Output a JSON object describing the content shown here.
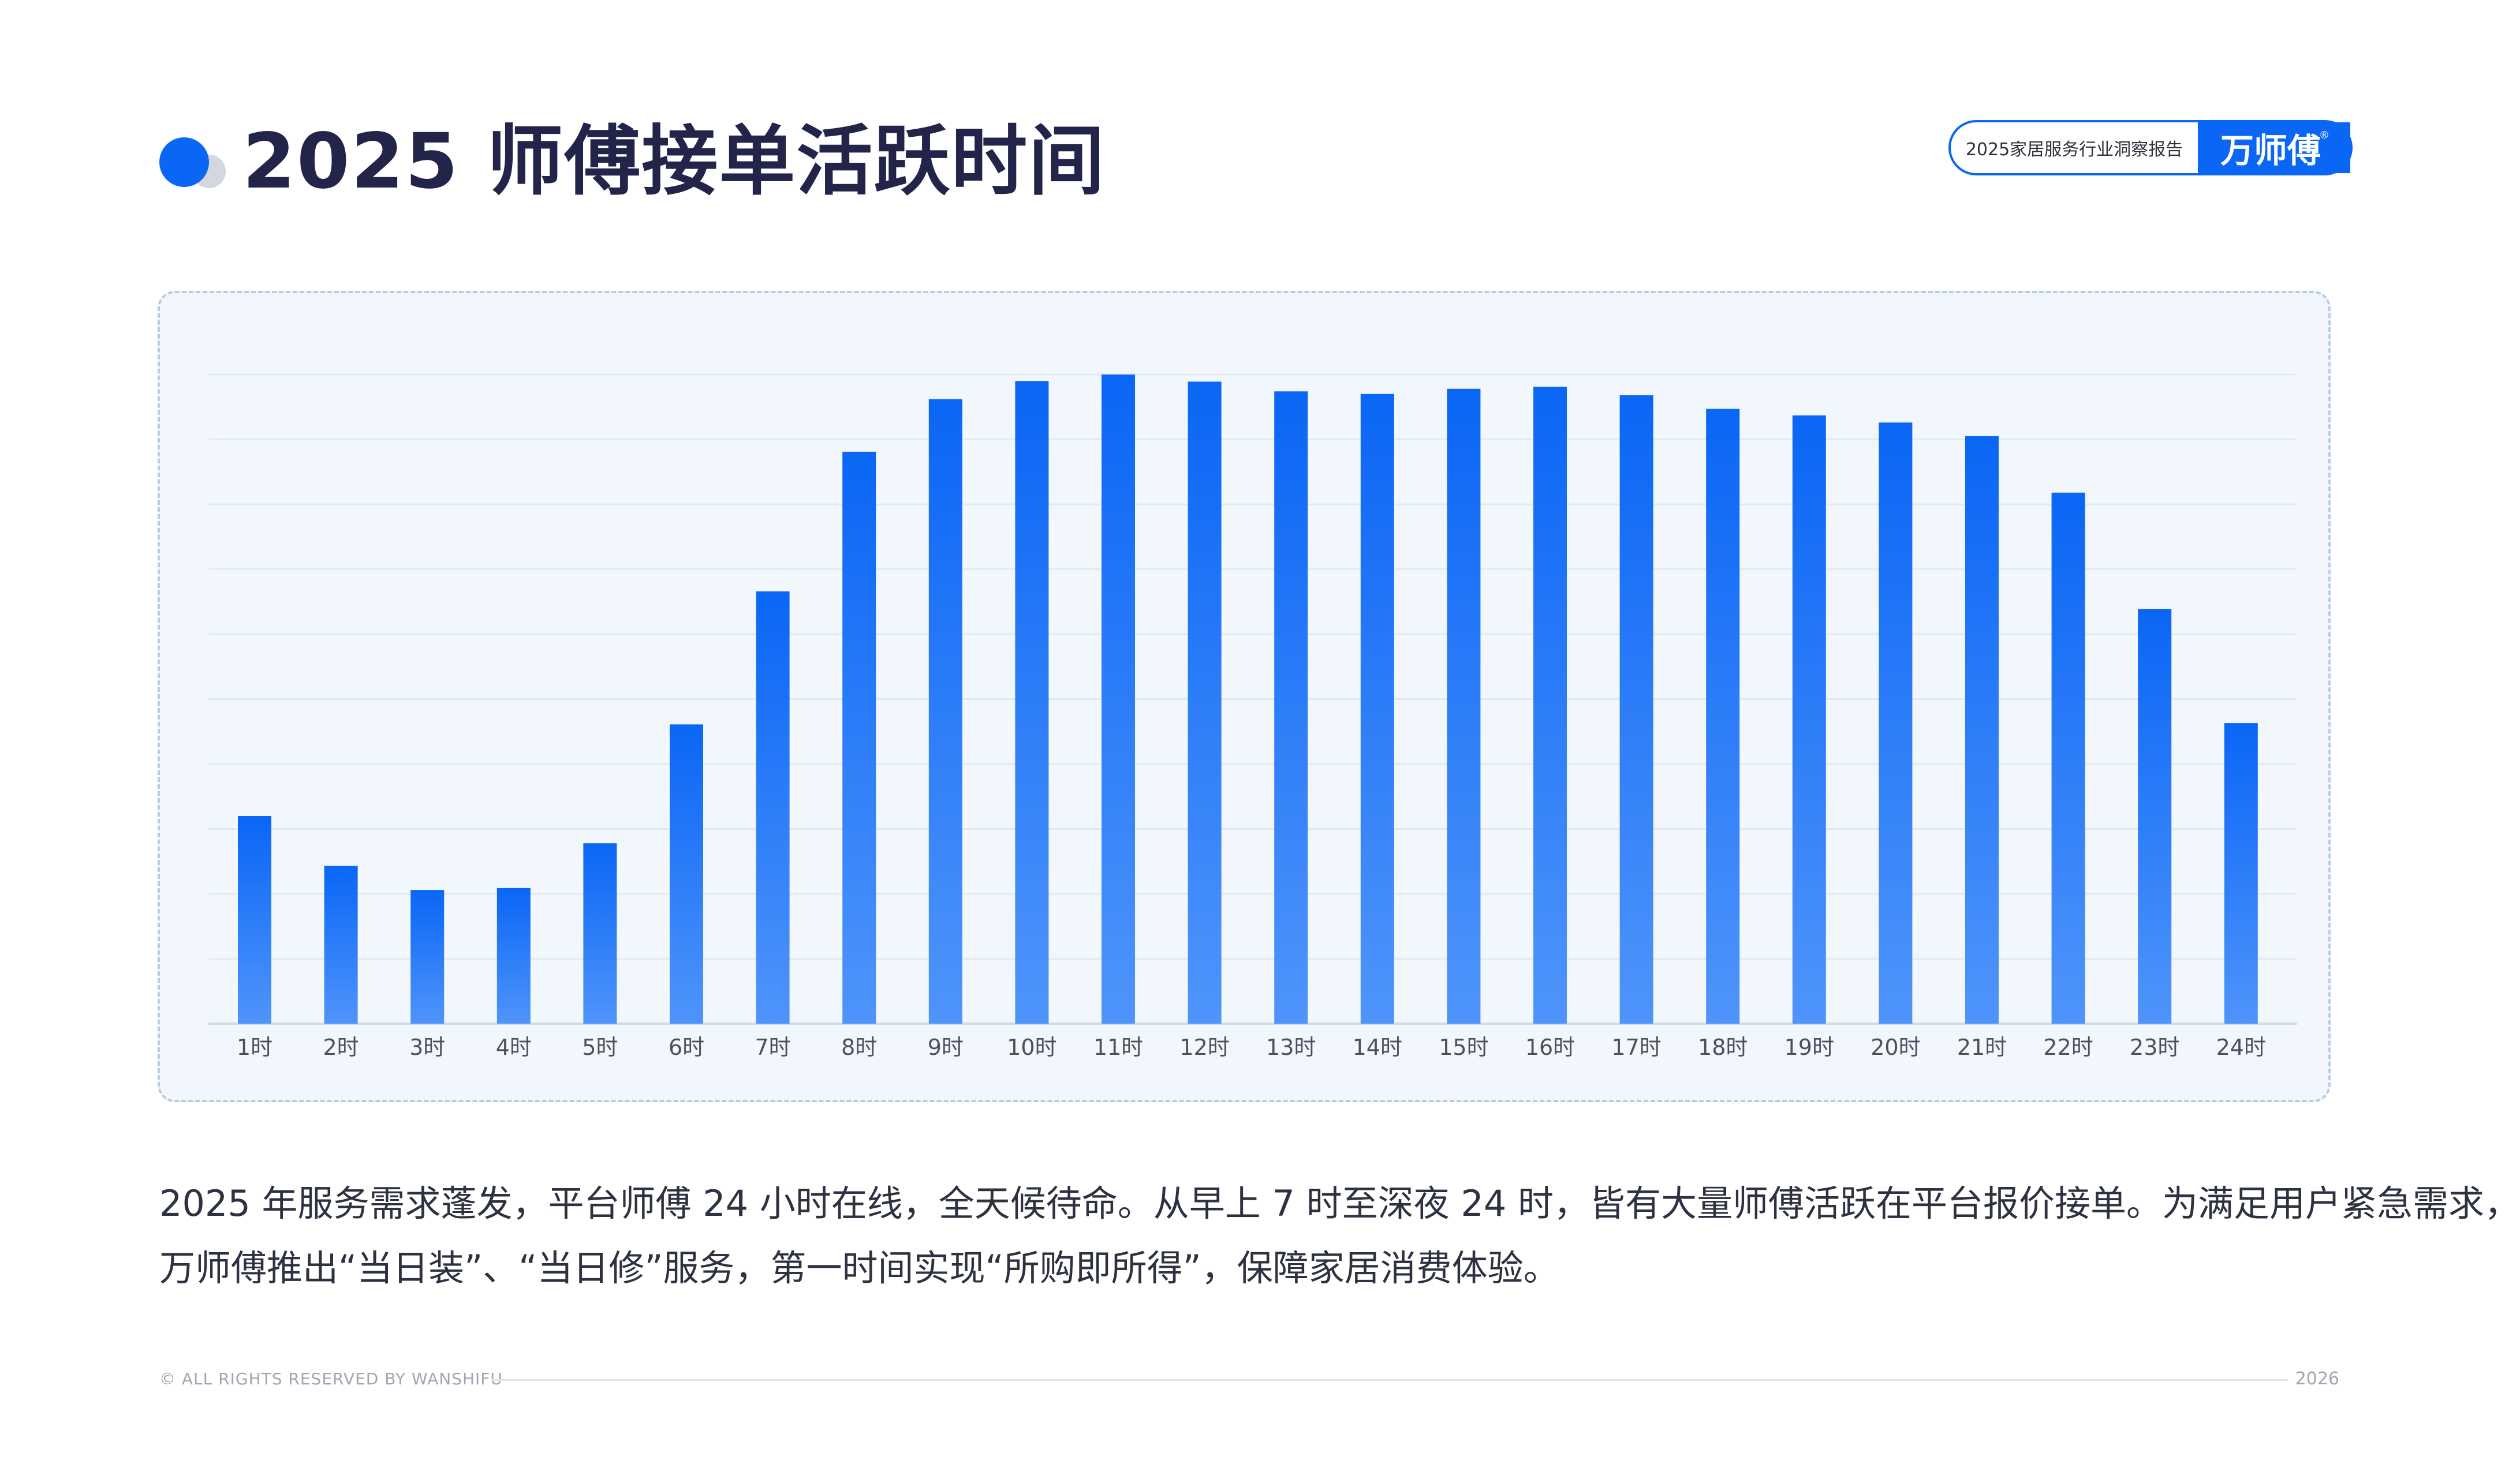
{
  "header": {
    "title": "2025 师傅接单活跃时间",
    "badge_text": "2025家居服务行业洞察报告",
    "badge_brand": "万师傅",
    "badge_reg": "®"
  },
  "colors": {
    "accent": "#0a66f5",
    "bar_top": "#0a66f5",
    "bar_bottom": "#4f94fb",
    "panel_bg": "#f2f7fd",
    "title": "#22244a"
  },
  "chart_data": {
    "type": "bar",
    "title": "",
    "xlabel": "",
    "ylabel": "",
    "categories": [
      "1时",
      "2时",
      "3时",
      "4时",
      "5时",
      "6时",
      "7时",
      "8时",
      "9时",
      "10时",
      "11时",
      "12时",
      "13时",
      "14时",
      "15时",
      "16时",
      "17时",
      "18时",
      "19时",
      "20时",
      "21时",
      "22时",
      "23时",
      "24时"
    ],
    "values": [
      32,
      24.3,
      20.6,
      20.9,
      27.8,
      46.1,
      66.6,
      88.1,
      96.2,
      99.0,
      100.0,
      98.9,
      97.4,
      97.0,
      97.8,
      98.1,
      96.8,
      94.7,
      93.7,
      92.6,
      90.5,
      81.8,
      63.9,
      46.3
    ],
    "ylim": [
      0,
      100
    ],
    "y_axis_labels_shown": false,
    "grid": true,
    "legend": "none"
  },
  "description": {
    "line1": "2025 年服务需求蓬发，平台师傅 24 小时在线，全天候待命。从早上 7 时至深夜 24 时，皆有大量师傅活跃在平台报价接单。为满足用户紧急需求，",
    "line2": "万师傅推出“当日装”、“当日修”服务，第一时间实现“所购即所得”，保障家居消费体验。"
  },
  "footer": {
    "copyright": "© ALL RIGHTS RESERVED BY WANSHIFU",
    "year": "2026"
  }
}
